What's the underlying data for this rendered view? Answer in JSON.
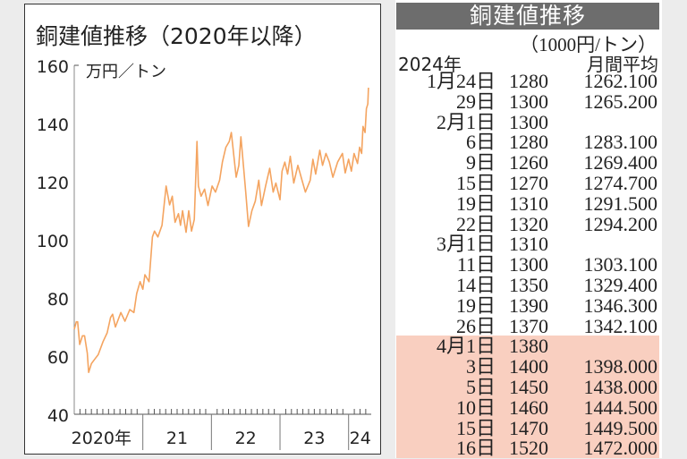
{
  "chart_data": {
    "type": "line",
    "title": "銅建値推移（2020年以降）",
    "ylabel": "万円／トン",
    "xlabel": "",
    "ylim": [
      40,
      160
    ],
    "yticks": [
      40,
      60,
      80,
      100,
      120,
      140,
      160
    ],
    "xlim": [
      2020.0,
      2024.33
    ],
    "xtick_labels": [
      "2020年",
      "21",
      "22",
      "23",
      "24"
    ],
    "grid": false,
    "line_color": "#f4a460",
    "series": [
      {
        "x": [
          2020.0,
          2020.03,
          2020.05,
          2020.08,
          2020.12,
          2020.15,
          2020.19,
          2020.21,
          2020.25,
          2020.3,
          2020.35,
          2020.42,
          2020.48,
          2020.53,
          2020.56,
          2020.6,
          2020.68,
          2020.74,
          2020.81,
          2020.87,
          2020.91,
          2020.96,
          2021.0,
          2021.03,
          2021.09,
          2021.14,
          2021.17,
          2021.22,
          2021.28,
          2021.34,
          2021.39,
          2021.43,
          2021.47,
          2021.52,
          2021.55,
          2021.58,
          2021.63,
          2021.67,
          2021.71,
          2021.75,
          2021.79,
          2021.81,
          2021.85,
          2021.9,
          2021.95,
          2022.01,
          2022.06,
          2022.12,
          2022.16,
          2022.21,
          2022.26,
          2022.29,
          2022.36,
          2022.4,
          2022.43,
          2022.47,
          2022.5,
          2022.54,
          2022.59,
          2022.64,
          2022.69,
          2022.73,
          2022.79,
          2022.85,
          2022.9,
          2022.94,
          2023.0,
          2023.03,
          2023.07,
          2023.11,
          2023.15,
          2023.2,
          2023.26,
          2023.32,
          2023.37,
          2023.44,
          2023.48,
          2023.52,
          2023.58,
          2023.62,
          2023.67,
          2023.72,
          2023.77,
          2023.84,
          2023.91,
          2023.95,
          2024.0,
          2024.04,
          2024.08,
          2024.13,
          2024.16,
          2024.19,
          2024.21,
          2024.24,
          2024.26,
          2024.28,
          2024.29
        ],
        "y": [
          69.2,
          71.8,
          71.8,
          64,
          67,
          67,
          61,
          54.4,
          57.4,
          59,
          60.5,
          65,
          68,
          73.3,
          74.4,
          70,
          75,
          72,
          76,
          75,
          81.5,
          85.6,
          83,
          88,
          85.6,
          101,
          103,
          101,
          105,
          118.5,
          112,
          115,
          106,
          109,
          105,
          110,
          102.6,
          110,
          103,
          107,
          133.8,
          118.5,
          115,
          117.4,
          111.8,
          118.5,
          116.4,
          120.5,
          126.7,
          131.8,
          133.8,
          136.9,
          121.5,
          125.6,
          135.4,
          124.6,
          116.4,
          104.6,
          110,
          113.3,
          120.5,
          111.8,
          118.5,
          124.6,
          116.4,
          119.5,
          113.8,
          123.6,
          126.7,
          122.6,
          128.7,
          119.5,
          125.6,
          120.5,
          116.4,
          120.5,
          127.7,
          122.6,
          130.8,
          125.6,
          129.7,
          126.7,
          121.5,
          126.7,
          129.7,
          123,
          127.7,
          123.6,
          129.7,
          126.2,
          131.8,
          129.7,
          139,
          136.9,
          145.1,
          146.7,
          152.3
        ]
      }
    ]
  },
  "table": {
    "title": "銅建値推移",
    "unit": "（1000円/トン）",
    "year_header": "2024年",
    "avg_header": "月間平均",
    "highlight_color": "#f9cfc0",
    "rows": [
      {
        "date": "1月24日",
        "price": "1280",
        "avg": "1262.100",
        "hl": false
      },
      {
        "date": "29日",
        "price": "1300",
        "avg": "1265.200",
        "hl": false
      },
      {
        "date": "2月1日",
        "price": "1300",
        "avg": "",
        "hl": false
      },
      {
        "date": "6日",
        "price": "1280",
        "avg": "1283.100",
        "hl": false
      },
      {
        "date": "9日",
        "price": "1260",
        "avg": "1269.400",
        "hl": false
      },
      {
        "date": "15日",
        "price": "1270",
        "avg": "1274.700",
        "hl": false
      },
      {
        "date": "19日",
        "price": "1310",
        "avg": "1291.500",
        "hl": false
      },
      {
        "date": "22日",
        "price": "1320",
        "avg": "1294.200",
        "hl": false
      },
      {
        "date": "3月1日",
        "price": "1310",
        "avg": "",
        "hl": false
      },
      {
        "date": "11日",
        "price": "1300",
        "avg": "1303.100",
        "hl": false
      },
      {
        "date": "14日",
        "price": "1350",
        "avg": "1329.400",
        "hl": false
      },
      {
        "date": "19日",
        "price": "1390",
        "avg": "1346.300",
        "hl": false
      },
      {
        "date": "26日",
        "price": "1370",
        "avg": "1342.100",
        "hl": false
      },
      {
        "date": "4月1日",
        "price": "1380",
        "avg": "",
        "hl": true
      },
      {
        "date": "3日",
        "price": "1400",
        "avg": "1398.000",
        "hl": true
      },
      {
        "date": "5日",
        "price": "1450",
        "avg": "1438.000",
        "hl": true
      },
      {
        "date": "10日",
        "price": "1460",
        "avg": "1444.500",
        "hl": true
      },
      {
        "date": "15日",
        "price": "1470",
        "avg": "1449.500",
        "hl": true
      },
      {
        "date": "16日",
        "price": "1520",
        "avg": "1472.000",
        "hl": true
      }
    ]
  }
}
